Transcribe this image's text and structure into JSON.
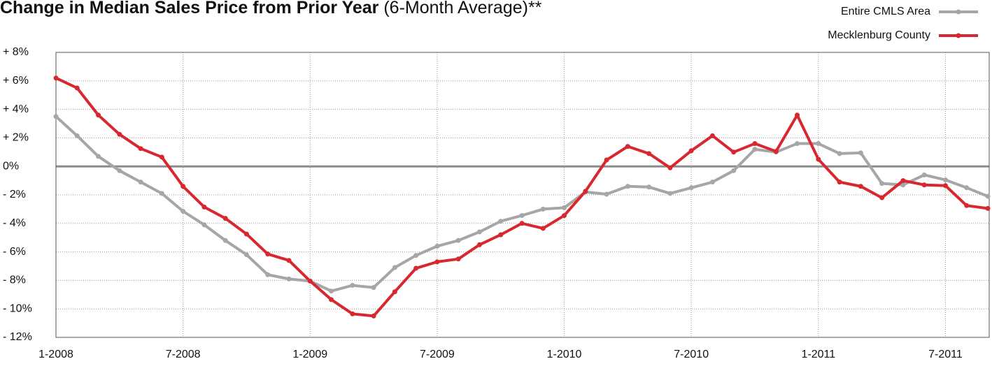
{
  "chart_data": {
    "type": "line",
    "title": "Change in Median Sales Price from Prior Year",
    "title_note": "(6-Month Average)**",
    "categories": [
      "1-2008",
      null,
      null,
      null,
      null,
      null,
      "7-2008",
      null,
      null,
      null,
      null,
      null,
      "1-2009",
      null,
      null,
      null,
      null,
      null,
      "7-2009",
      null,
      null,
      null,
      null,
      null,
      "1-2010",
      null,
      null,
      null,
      null,
      null,
      "7-2010",
      null,
      null,
      null,
      null,
      null,
      "1-2011",
      null,
      null,
      null,
      null,
      null,
      "7-2011",
      null,
      null
    ],
    "series": [
      {
        "name": "Entire CMLS Area",
        "color": "#a6a6a6",
        "values": [
          3.5,
          2.15,
          0.7,
          -0.3,
          -1.1,
          -1.9,
          -3.15,
          -4.1,
          -5.2,
          -6.2,
          -7.6,
          -7.9,
          -8.05,
          -8.75,
          -8.35,
          -8.5,
          -7.1,
          -6.25,
          -5.6,
          -5.2,
          -4.6,
          -3.85,
          -3.45,
          -3.0,
          -2.9,
          -1.8,
          -1.95,
          -1.4,
          -1.45,
          -1.9,
          -1.5,
          -1.1,
          -0.3,
          1.2,
          1.0,
          1.6,
          1.6,
          0.9,
          0.95,
          -1.2,
          -1.3,
          -0.6,
          -0.95,
          -1.5,
          -2.1
        ]
      },
      {
        "name": "Mecklenburg County",
        "color": "#d7282f",
        "values": [
          6.2,
          5.5,
          3.6,
          2.25,
          1.25,
          0.65,
          -1.4,
          -2.85,
          -3.65,
          -4.75,
          -6.15,
          -6.6,
          -8.05,
          -9.35,
          -10.35,
          -10.5,
          -8.8,
          -7.15,
          -6.7,
          -6.5,
          -5.5,
          -4.8,
          -4.0,
          -4.35,
          -3.45,
          -1.75,
          0.45,
          1.4,
          0.9,
          -0.1,
          1.1,
          2.15,
          1.0,
          1.6,
          1.05,
          3.6,
          0.5,
          -1.1,
          -1.4,
          -2.2,
          -1.0,
          -1.3,
          -1.35,
          -2.75,
          -2.95
        ]
      }
    ],
    "ylim": [
      -12,
      8
    ],
    "yticks": [
      {
        "value": -12,
        "label": "- 12%"
      },
      {
        "value": -10,
        "label": "- 10%"
      },
      {
        "value": -8,
        "label": "- 8%"
      },
      {
        "value": -6,
        "label": "- 6%"
      },
      {
        "value": -4,
        "label": "- 4%"
      },
      {
        "value": -2,
        "label": "- 2%"
      },
      {
        "value": 0,
        "label": "0%"
      },
      {
        "value": 2,
        "label": "+ 2%"
      },
      {
        "value": 4,
        "label": "+ 4%"
      },
      {
        "value": 6,
        "label": "+ 6%"
      },
      {
        "value": 8,
        "label": "+ 8%"
      }
    ],
    "grid": true,
    "legend": "top-right"
  }
}
